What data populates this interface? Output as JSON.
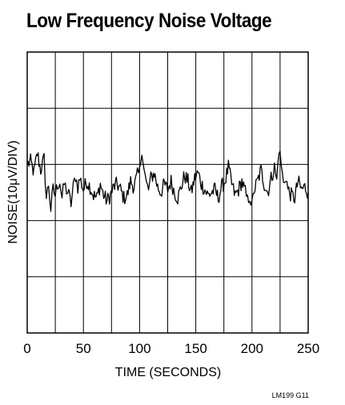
{
  "chart_data": {
    "type": "line",
    "title": "Low Frequency Noise Voltage",
    "xlabel": "TIME (SECONDS)",
    "ylabel": "NOISE(10μV/DIV)",
    "xlim": [
      0,
      250
    ],
    "ylim": [
      -5,
      5
    ],
    "x_ticks": [
      "0",
      "50",
      "100",
      "150",
      "200",
      "250"
    ],
    "y_divisions": 5,
    "grid": true,
    "line_color": "#000000",
    "figure_code": "LM199 G11",
    "series": [
      {
        "x": [
          0,
          3,
          6,
          9,
          12,
          15,
          17,
          19,
          21,
          23,
          25,
          27,
          29,
          31,
          33,
          35,
          37,
          39,
          41,
          43,
          45,
          47,
          50,
          53,
          56,
          59,
          62,
          65,
          68,
          71,
          74,
          77,
          80,
          83,
          86,
          89,
          92,
          95,
          98,
          100,
          102,
          104,
          106,
          108,
          110,
          113,
          116,
          119,
          122,
          125,
          128,
          131,
          134,
          137,
          140,
          143,
          146,
          149,
          152,
          155,
          158,
          161,
          164,
          167,
          170,
          173,
          176,
          179,
          182,
          185,
          188,
          191,
          194,
          196,
          198,
          200,
          202,
          205,
          208,
          211,
          214,
          217,
          220,
          222,
          224,
          226,
          228,
          230,
          232,
          235,
          238,
          241,
          244,
          247,
          250
        ],
        "y": [
          1.0,
          1.1,
          0.7,
          1.4,
          0.8,
          1.2,
          -0.2,
          0.3,
          -0.6,
          0.1,
          -0.1,
          0.3,
          0.4,
          -0.2,
          0.3,
          0.1,
          -0.1,
          -0.4,
          0.2,
          0.6,
          0.2,
          0.5,
          0.1,
          0.4,
          0.2,
          -0.1,
          -0.2,
          0.3,
          -0.1,
          -0.3,
          -0.1,
          0.2,
          0.3,
          0.1,
          -0.2,
          -0.1,
          0.4,
          0.2,
          0.6,
          0.7,
          1.6,
          0.8,
          0.3,
          0.1,
          0.5,
          0.7,
          0.2,
          0.0,
          0.3,
          0.1,
          0.4,
          0.0,
          -0.2,
          0.2,
          0.6,
          0.4,
          0.0,
          0.5,
          0.7,
          0.3,
          0.1,
          -0.1,
          0.0,
          0.1,
          -0.2,
          0.2,
          0.4,
          0.9,
          0.3,
          -0.1,
          0.1,
          0.4,
          0.0,
          -0.3,
          -0.1,
          -0.5,
          0.1,
          0.4,
          0.8,
          0.3,
          0.0,
          0.5,
          0.9,
          0.4,
          1.6,
          1.0,
          0.3,
          0.6,
          0.1,
          -0.1,
          -0.2,
          0.4,
          0.1,
          0.2,
          0.0
        ]
      }
    ]
  }
}
